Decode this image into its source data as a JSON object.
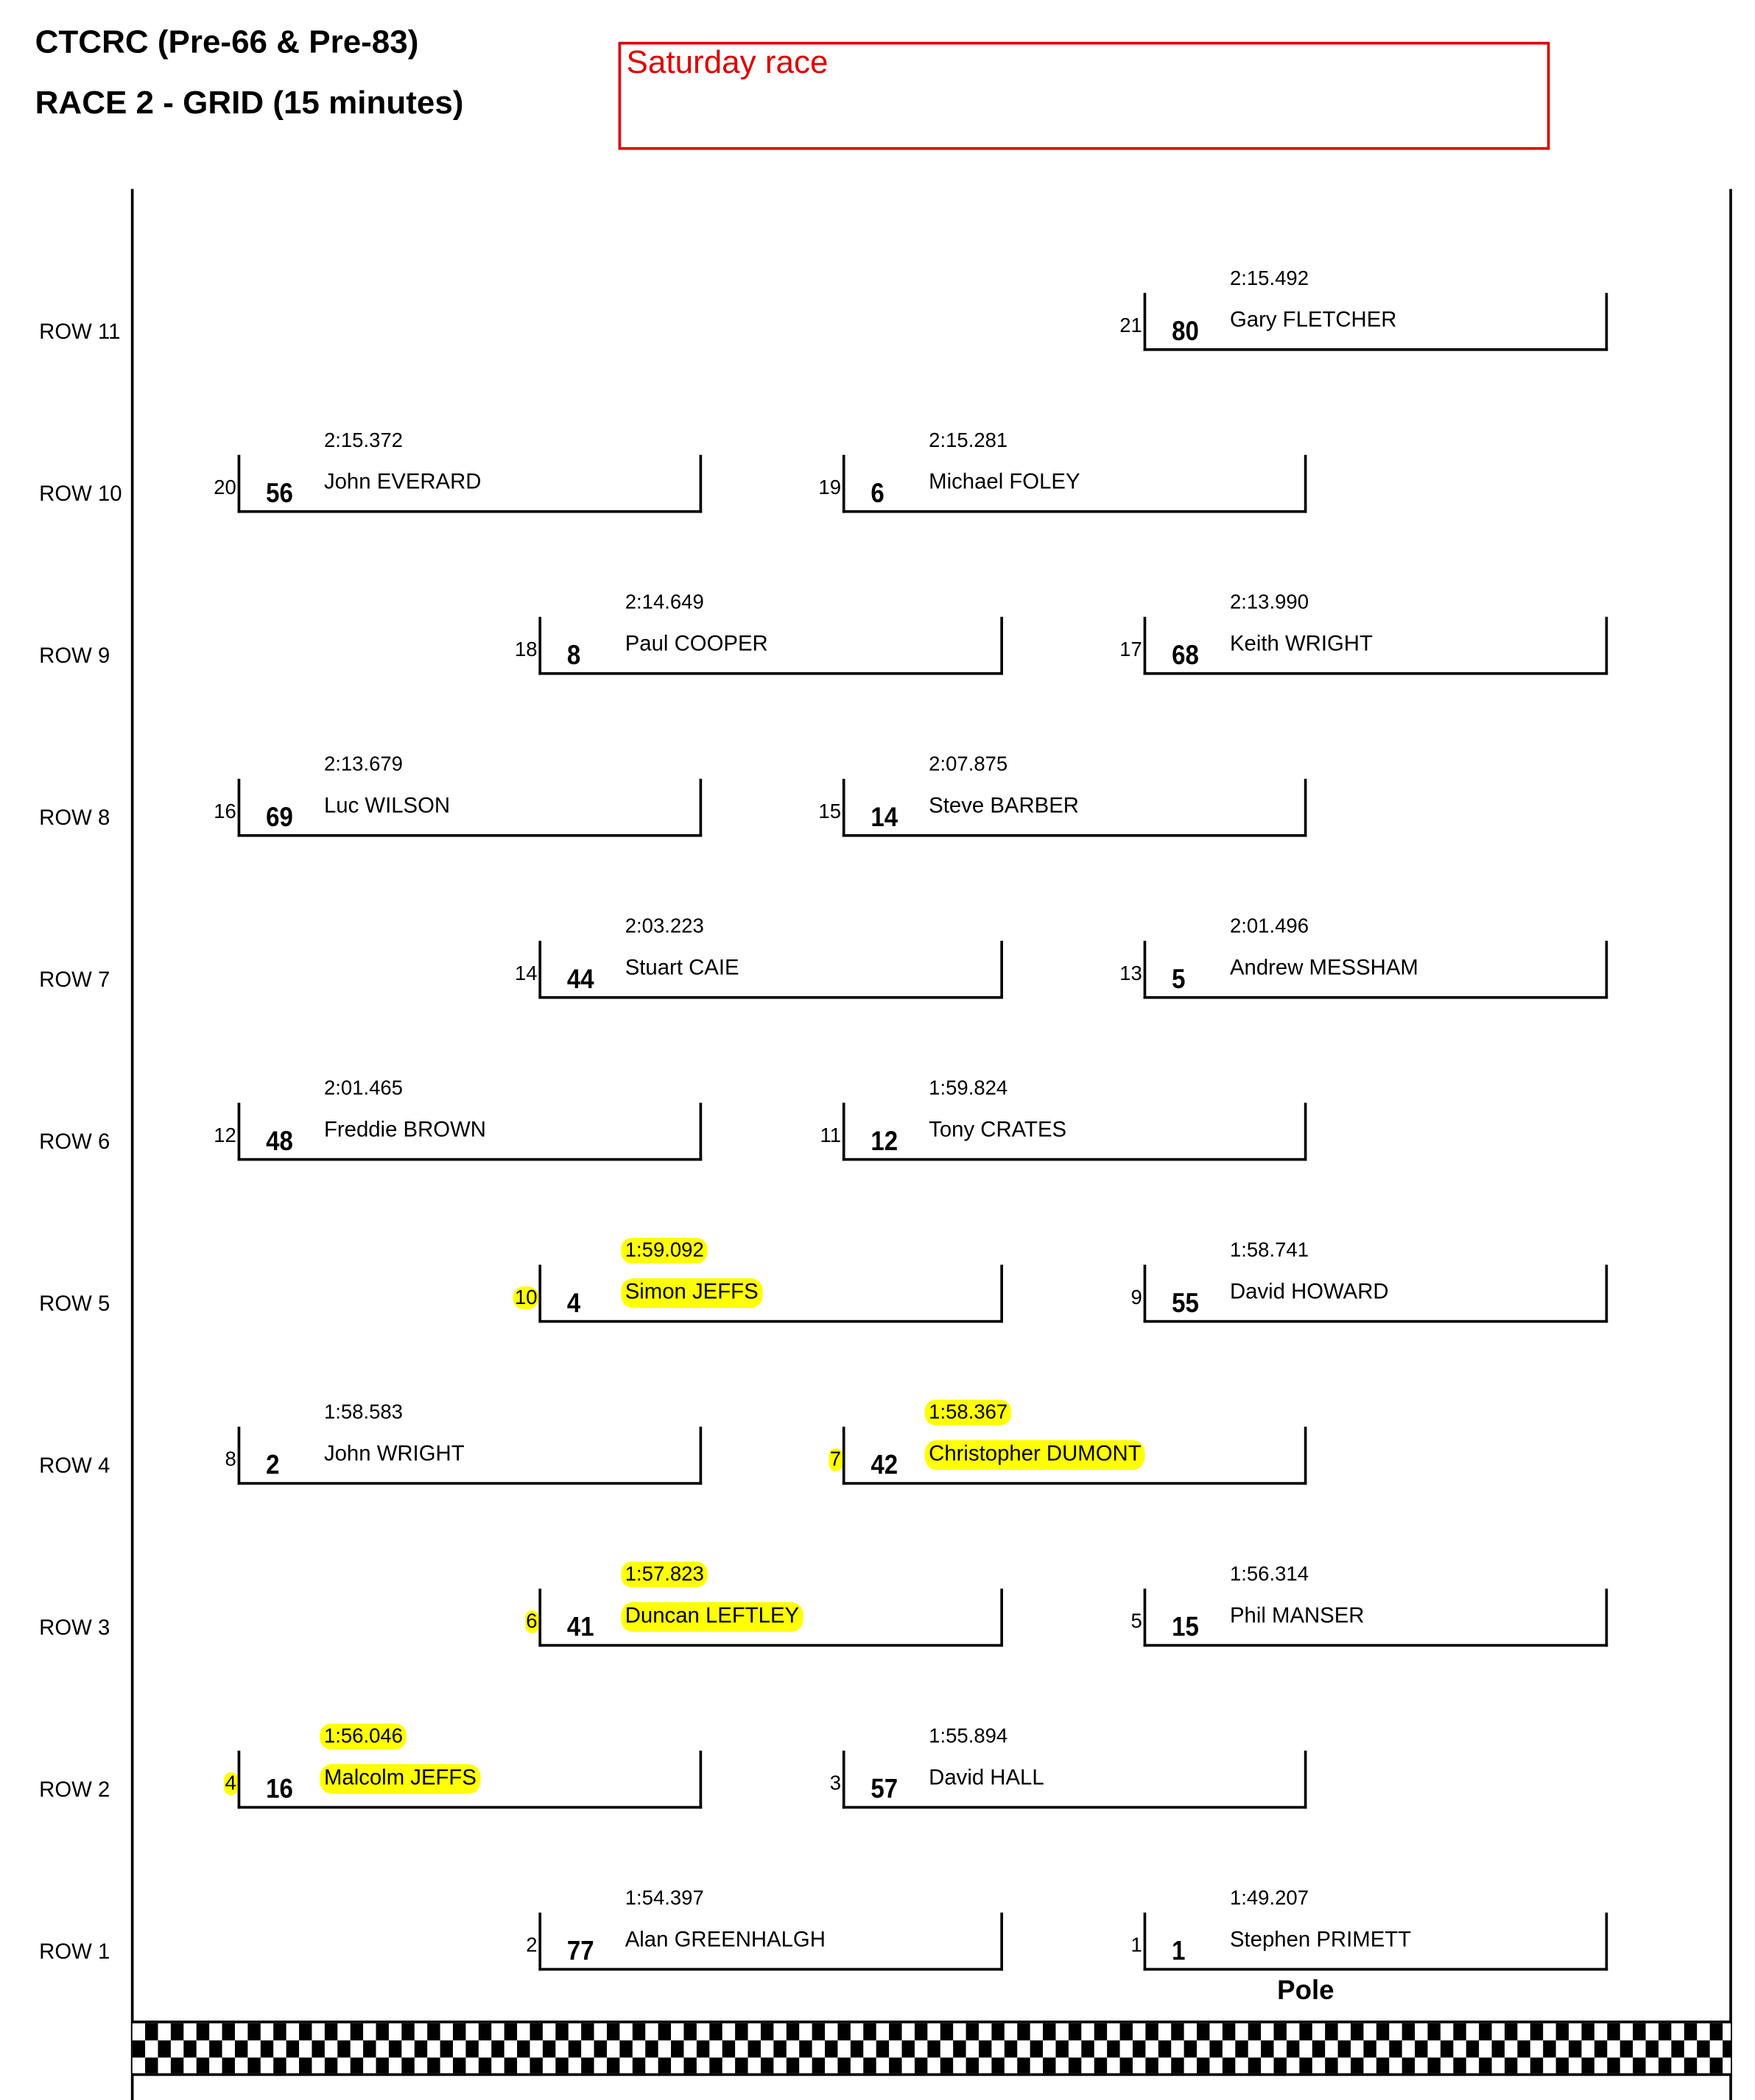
{
  "header": {
    "series": "CTCRC (Pre-66 & Pre-83)",
    "race": "RACE 2 - GRID (15 minutes)",
    "note": "Saturday race"
  },
  "highlight_color": "#ffff00",
  "pole_label": "Pole",
  "rows": [
    {
      "label": "ROW 11",
      "row": 11,
      "slots": [
        {
          "side": "right",
          "pos": "21",
          "number": "80",
          "driver": "Gary FLETCHER",
          "time": "2:15.492",
          "highlighted": false
        }
      ]
    },
    {
      "label": "ROW 10",
      "row": 10,
      "slots": [
        {
          "side": "left",
          "pos": "20",
          "number": "56",
          "driver": "John EVERARD",
          "time": "2:15.372",
          "highlighted": false
        },
        {
          "side": "right",
          "pos": "19",
          "number": "6",
          "driver": "Michael FOLEY",
          "time": "2:15.281",
          "highlighted": false
        }
      ]
    },
    {
      "label": "ROW 9",
      "row": 9,
      "slots": [
        {
          "side": "left",
          "pos": "18",
          "number": "8",
          "driver": "Paul COOPER",
          "time": "2:14.649",
          "highlighted": false
        },
        {
          "side": "right",
          "pos": "17",
          "number": "68",
          "driver": "Keith WRIGHT",
          "time": "2:13.990",
          "highlighted": false
        }
      ]
    },
    {
      "label": "ROW 8",
      "row": 8,
      "slots": [
        {
          "side": "left",
          "pos": "16",
          "number": "69",
          "driver": "Luc WILSON",
          "time": "2:13.679",
          "highlighted": false
        },
        {
          "side": "right",
          "pos": "15",
          "number": "14",
          "driver": "Steve BARBER",
          "time": "2:07.875",
          "highlighted": false
        }
      ]
    },
    {
      "label": "ROW 7",
      "row": 7,
      "slots": [
        {
          "side": "left",
          "pos": "14",
          "number": "44",
          "driver": "Stuart CAIE",
          "time": "2:03.223",
          "highlighted": false
        },
        {
          "side": "right",
          "pos": "13",
          "number": "5",
          "driver": "Andrew MESSHAM",
          "time": "2:01.496",
          "highlighted": false
        }
      ]
    },
    {
      "label": "ROW 6",
      "row": 6,
      "slots": [
        {
          "side": "left",
          "pos": "12",
          "number": "48",
          "driver": "Freddie BROWN",
          "time": "2:01.465",
          "highlighted": false
        },
        {
          "side": "right",
          "pos": "11",
          "number": "12",
          "driver": "Tony CRATES",
          "time": "1:59.824",
          "highlighted": false
        }
      ]
    },
    {
      "label": "ROW 5",
      "row": 5,
      "slots": [
        {
          "side": "left",
          "pos": "10",
          "number": "4",
          "driver": "Simon JEFFS",
          "time": "1:59.092",
          "highlighted": true
        },
        {
          "side": "right",
          "pos": "9",
          "number": "55",
          "driver": "David HOWARD",
          "time": "1:58.741",
          "highlighted": false
        }
      ]
    },
    {
      "label": "ROW 4",
      "row": 4,
      "slots": [
        {
          "side": "left",
          "pos": "8",
          "number": "2",
          "driver": "John WRIGHT",
          "time": "1:58.583",
          "highlighted": false
        },
        {
          "side": "right",
          "pos": "7",
          "number": "42",
          "driver": "Christopher DUMONT",
          "time": "1:58.367",
          "highlighted": true
        }
      ]
    },
    {
      "label": "ROW 3",
      "row": 3,
      "slots": [
        {
          "side": "left",
          "pos": "6",
          "number": "41",
          "driver": "Duncan LEFTLEY",
          "time": "1:57.823",
          "highlighted": true
        },
        {
          "side": "right",
          "pos": "5",
          "number": "15",
          "driver": "Phil MANSER",
          "time": "1:56.314",
          "highlighted": false
        }
      ]
    },
    {
      "label": "ROW 2",
      "row": 2,
      "slots": [
        {
          "side": "left",
          "pos": "4",
          "number": "16",
          "driver": "Malcolm JEFFS",
          "time": "1:56.046",
          "highlighted": true
        },
        {
          "side": "right",
          "pos": "3",
          "number": "57",
          "driver": "David HALL",
          "time": "1:55.894",
          "highlighted": false
        }
      ]
    },
    {
      "label": "ROW 1",
      "row": 1,
      "slots": [
        {
          "side": "left",
          "pos": "2",
          "number": "77",
          "driver": "Alan GREENHALGH",
          "time": "1:54.397",
          "highlighted": false
        },
        {
          "side": "right",
          "pos": "1",
          "number": "1",
          "driver": "Stephen PRIMETT",
          "time": "1:49.207",
          "highlighted": false
        }
      ]
    }
  ]
}
